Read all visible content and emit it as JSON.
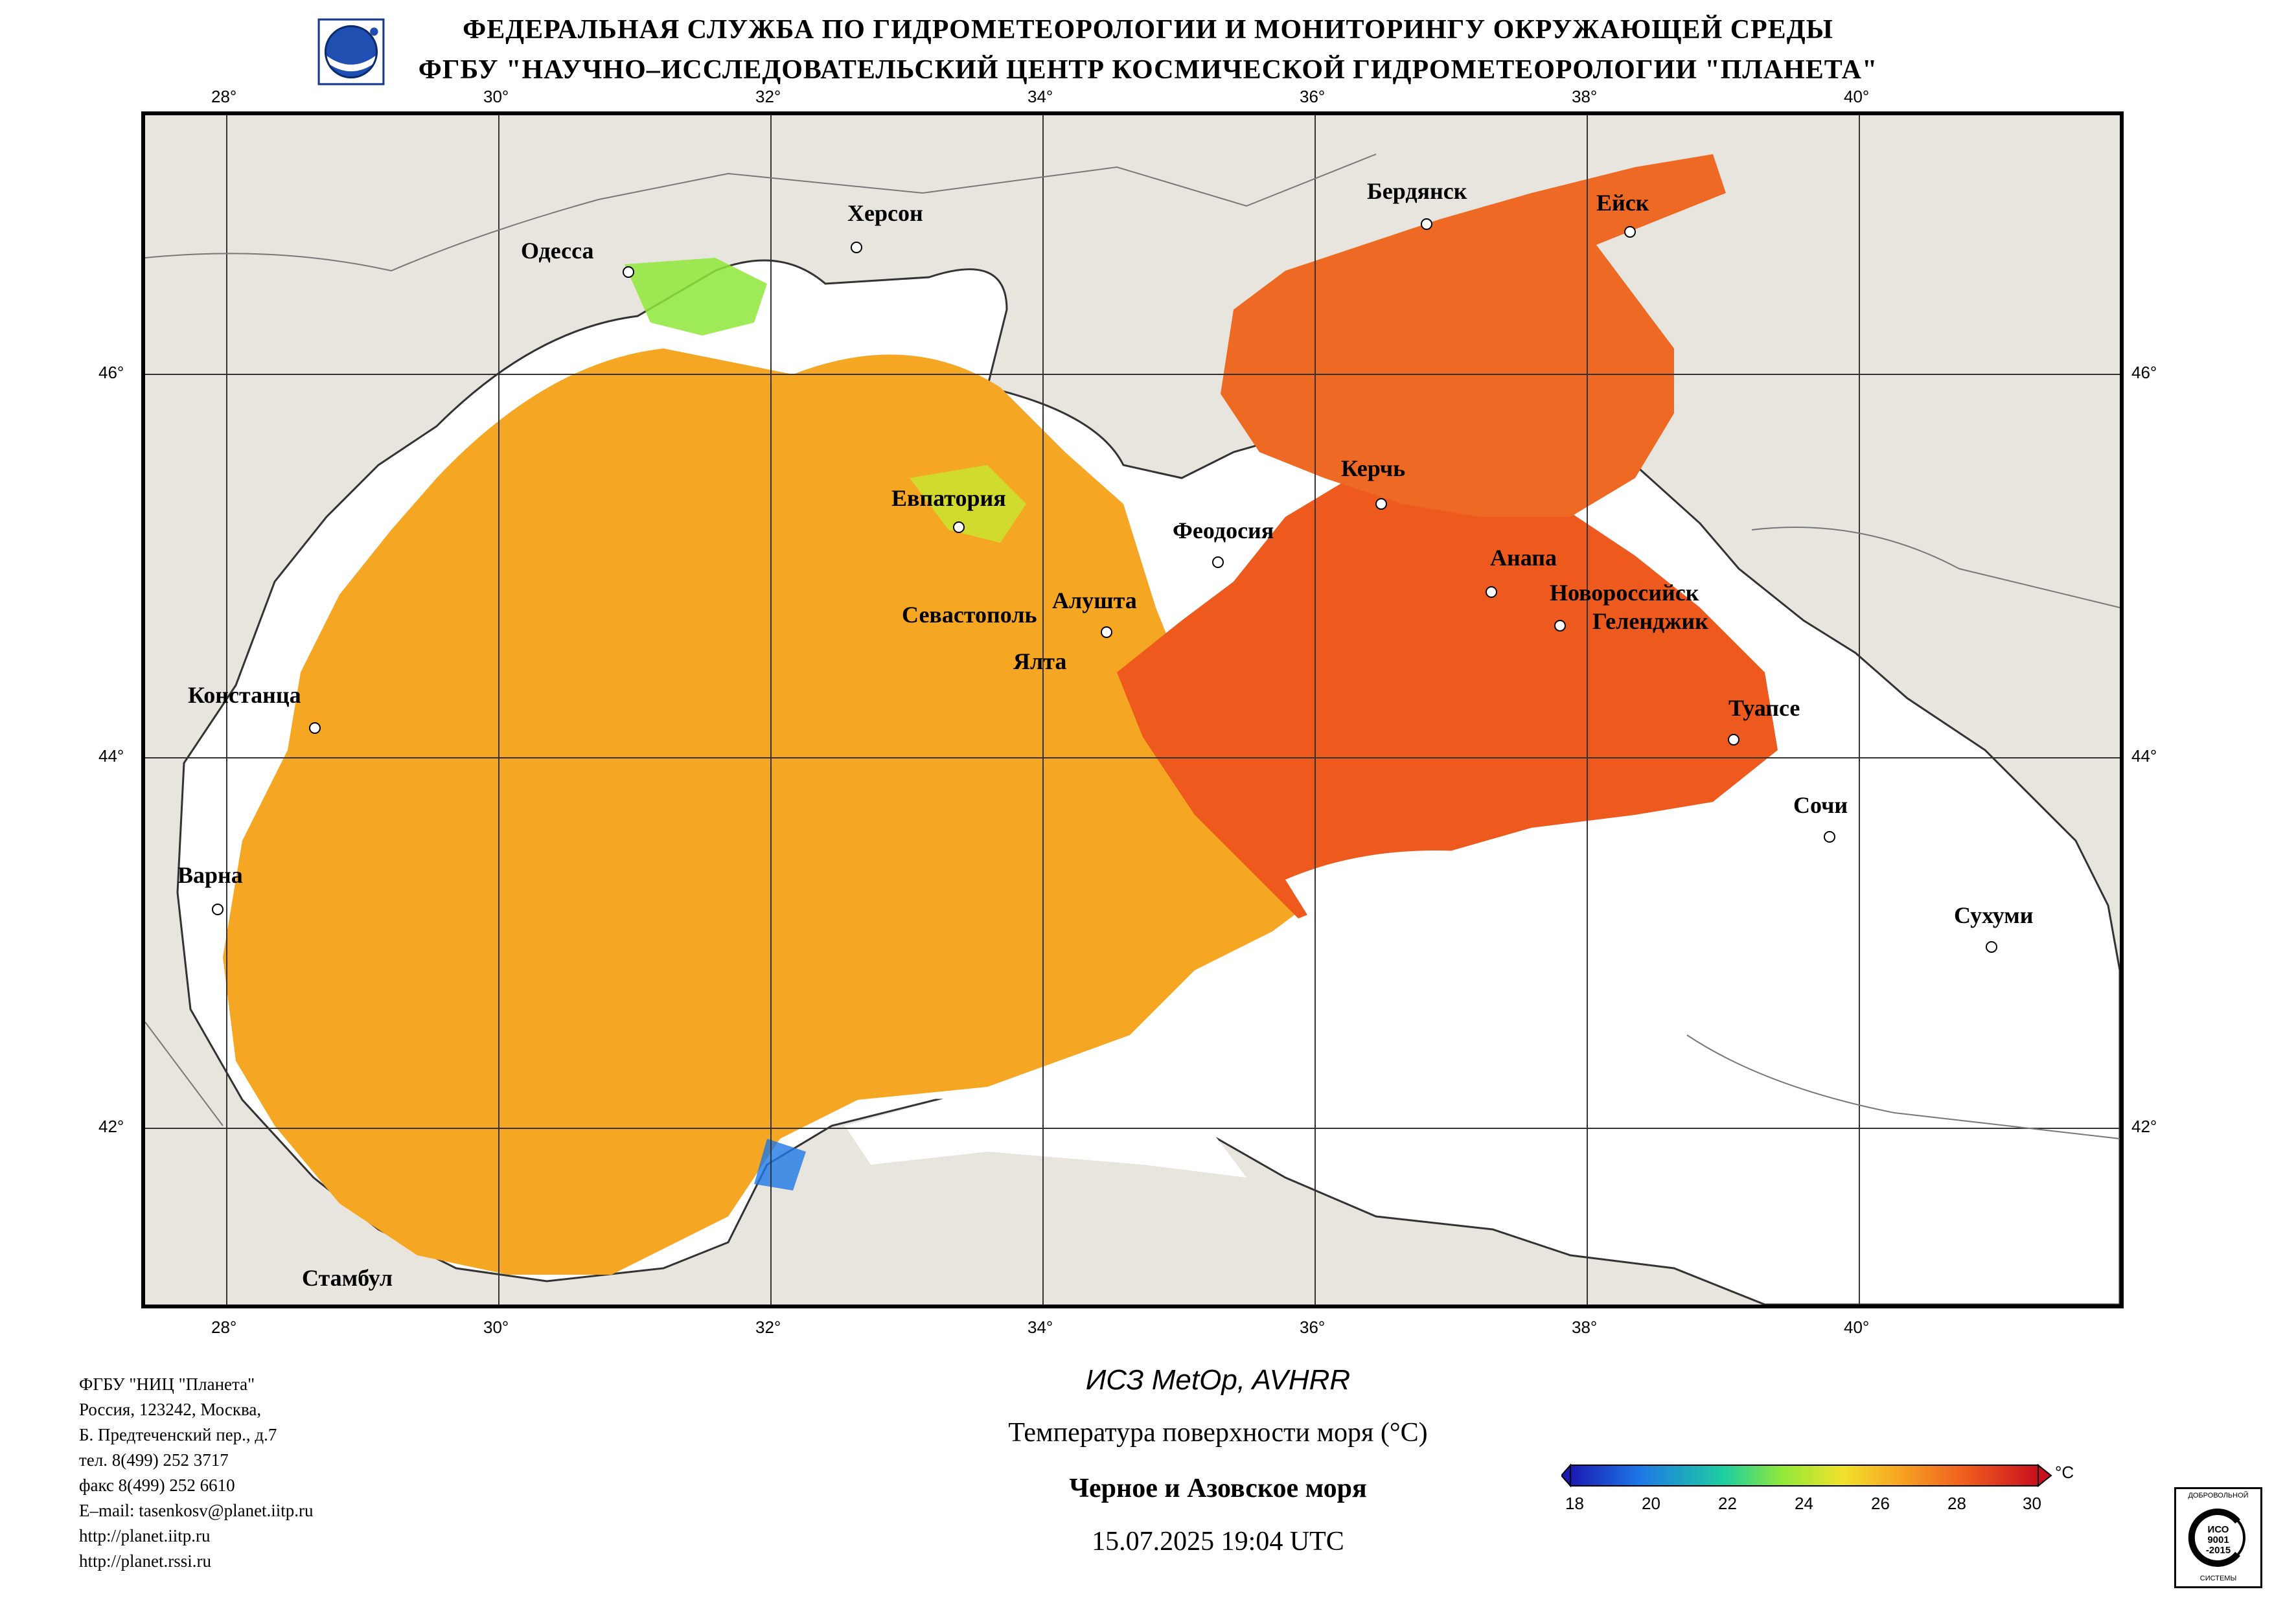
{
  "header": {
    "line1": "ФЕДЕРАЛЬНАЯ СЛУЖБА ПО ГИДРОМЕТЕОРОЛОГИИ И МОНИТОРИНГУ ОКРУЖАЮЩЕЙ СРЕДЫ",
    "line2": "ФГБУ \"НАУЧНО–ИССЛЕДОВАТЕЛЬСКИЙ ЦЕНТР КОСМИЧЕСКОЙ ГИДРОМЕТЕОРОЛОГИИ \"ПЛАНЕТА\"",
    "logo_icon": "planeta-logo-icon"
  },
  "map": {
    "lon_ticks": [
      "28°",
      "30°",
      "32°",
      "34°",
      "36°",
      "38°",
      "40°"
    ],
    "lat_ticks": [
      "46°",
      "44°",
      "42°"
    ],
    "cities": [
      {
        "name": "Одесса"
      },
      {
        "name": "Херсон"
      },
      {
        "name": "Бердянск"
      },
      {
        "name": "Ейск"
      },
      {
        "name": "Евпатория"
      },
      {
        "name": "Керчь"
      },
      {
        "name": "Феодосия"
      },
      {
        "name": "Анапа"
      },
      {
        "name": "Новороссийск"
      },
      {
        "name": "Геленджик"
      },
      {
        "name": "Севастополь"
      },
      {
        "name": "Алушта"
      },
      {
        "name": "Ялта"
      },
      {
        "name": "Констанца"
      },
      {
        "name": "Туапсе"
      },
      {
        "name": "Сочи"
      },
      {
        "name": "Варна"
      },
      {
        "name": "Сухуми"
      },
      {
        "name": "Стамбул"
      }
    ],
    "colors": {
      "land": "#e8e5df",
      "cloud": "#ffffff",
      "sst_warm": "#f5a623",
      "sst_hot": "#ee5a1e"
    }
  },
  "footer": {
    "org": [
      "ФГБУ \"НИЦ \"Планета\"",
      "Россия, 123242, Москва,",
      "Б. Предтеченский пер., д.7",
      "тел. 8(499) 252 3717",
      "факс 8(499) 252 6610",
      "E–mail: tasenkosv@planet.iitp.ru",
      "http://planet.iitp.ru",
      "http://planet.rssi.ru"
    ],
    "satellite": "ИСЗ MetOp, AVHRR",
    "product": "Температура поверхности моря (°C)",
    "region": "Черное и Азовское моря",
    "datetime": "15.07.2025 19:04 UTC",
    "colorbar_unit": "°C",
    "colorbar_labels": [
      "18",
      "20",
      "22",
      "24",
      "26",
      "28",
      "30"
    ],
    "colorbar_colors": [
      "#1a1ab4",
      "#1e78e6",
      "#1ecfa0",
      "#8ee83a",
      "#f0e22a",
      "#f7a623",
      "#ee5a1e",
      "#c8101e"
    ],
    "cert_text": [
      "ДОБРОВОЛЬНОЙ",
      "ИСО",
      "9001",
      "-2015",
      "СИСТЕМЫ"
    ]
  }
}
